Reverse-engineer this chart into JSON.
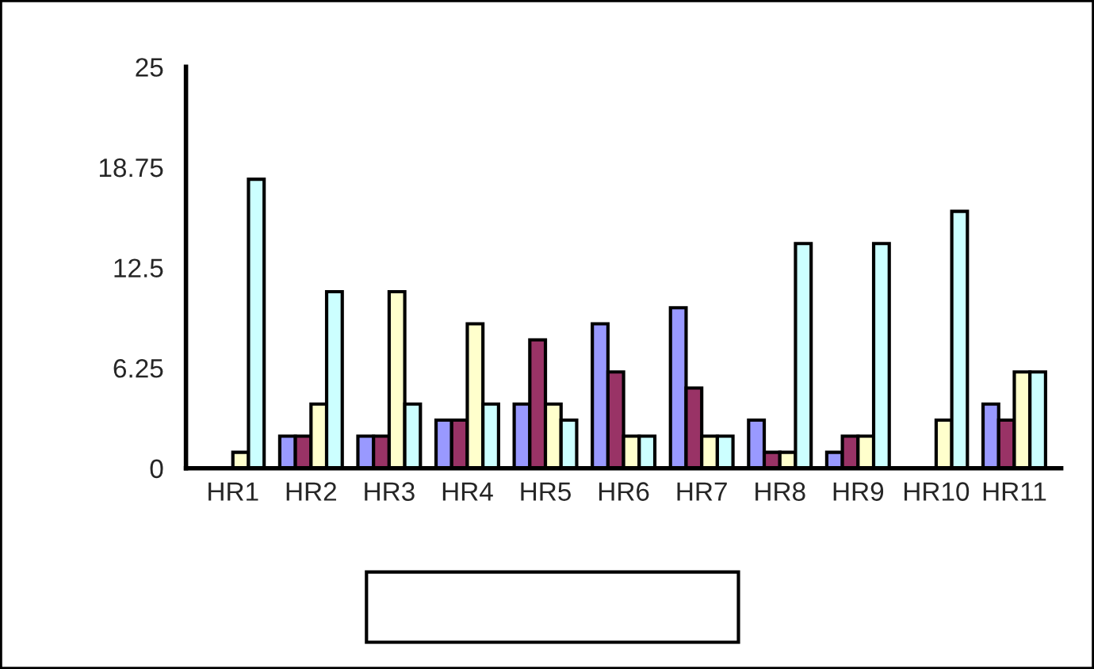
{
  "chart_data": {
    "type": "bar",
    "categories": [
      "HR1",
      "HR2",
      "HR3",
      "HR4",
      "HR5",
      "HR6",
      "HR7",
      "HR8",
      "HR9",
      "HR10",
      "HR11"
    ],
    "series": [
      {
        "color": "#9999ff",
        "values": [
          0,
          2,
          2,
          3,
          4,
          9,
          10,
          3,
          1,
          0,
          4
        ]
      },
      {
        "color": "#993366",
        "values": [
          0,
          2,
          2,
          3,
          8,
          6,
          5,
          1,
          2,
          0,
          3
        ]
      },
      {
        "color": "#ffffcc",
        "values": [
          1,
          4,
          11,
          9,
          4,
          2,
          2,
          1,
          2,
          3,
          6
        ]
      },
      {
        "color": "#ccffff",
        "values": [
          18,
          11,
          4,
          4,
          3,
          2,
          2,
          14,
          14,
          16,
          6
        ]
      }
    ],
    "ylim": [
      0,
      25
    ],
    "yticks": [
      0,
      6.25,
      12.5,
      18.75,
      25
    ],
    "grid": false
  }
}
